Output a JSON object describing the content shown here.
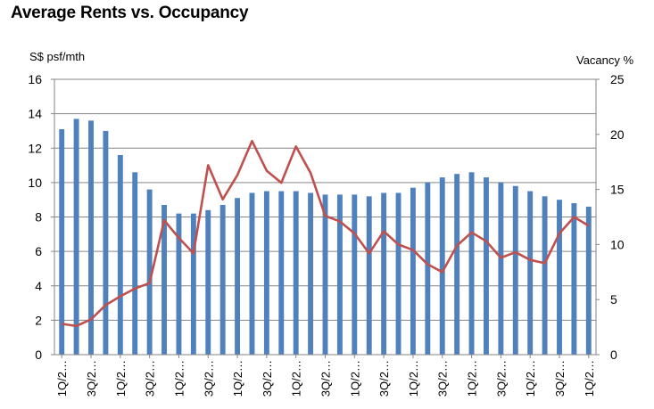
{
  "chart_data": {
    "type": "bar+line",
    "title": "Average Rents vs. Occupancy",
    "ylabel_left": "S$ psf/mth",
    "ylabel_right": "Vacancy %",
    "ylim_left": [
      0,
      16
    ],
    "ylim_right": [
      0,
      25
    ],
    "yticks_left": [
      0,
      2,
      4,
      6,
      8,
      10,
      12,
      14,
      16
    ],
    "yticks_right": [
      0,
      5,
      10,
      15,
      20,
      25
    ],
    "grid": true,
    "legend": "none",
    "x_tick_labels": [
      "1Q/2…",
      "3Q/2…",
      "1Q/2…",
      "3Q/2…",
      "1Q/2…",
      "3Q/2…",
      "1Q/2…",
      "3Q/2…",
      "1Q/2…",
      "3Q/2…",
      "1Q/2…",
      "3Q/2…",
      "1Q/2…",
      "3Q/2…",
      "1Q/2…",
      "3Q/2…",
      "1Q/2…",
      "3Q/2…",
      "1Q/2…"
    ],
    "series": [
      {
        "kind": "bar",
        "axis": "left",
        "color": "#4f81bd",
        "values": [
          13.1,
          13.7,
          13.6,
          13.0,
          11.6,
          10.6,
          9.6,
          8.7,
          8.2,
          8.2,
          8.4,
          8.7,
          9.1,
          9.4,
          9.5,
          9.5,
          9.5,
          9.4,
          9.3,
          9.3,
          9.3,
          9.2,
          9.4,
          9.4,
          9.7,
          10.0,
          10.3,
          10.5,
          10.6,
          10.3,
          10.0,
          9.8,
          9.5,
          9.2,
          9.0,
          8.8,
          8.6
        ]
      },
      {
        "kind": "line",
        "axis": "right",
        "color": "#c0504d",
        "values": [
          2.8,
          2.6,
          3.2,
          4.5,
          5.3,
          6.0,
          6.5,
          12.2,
          10.6,
          9.2,
          17.2,
          14.1,
          16.3,
          19.4,
          16.7,
          15.6,
          18.9,
          16.5,
          12.6,
          12.1,
          11.0,
          9.2,
          11.2,
          10.0,
          9.5,
          8.2,
          7.5,
          9.9,
          11.1,
          10.3,
          8.8,
          9.3,
          8.6,
          8.3,
          11.0,
          12.5,
          11.7
        ]
      }
    ]
  }
}
